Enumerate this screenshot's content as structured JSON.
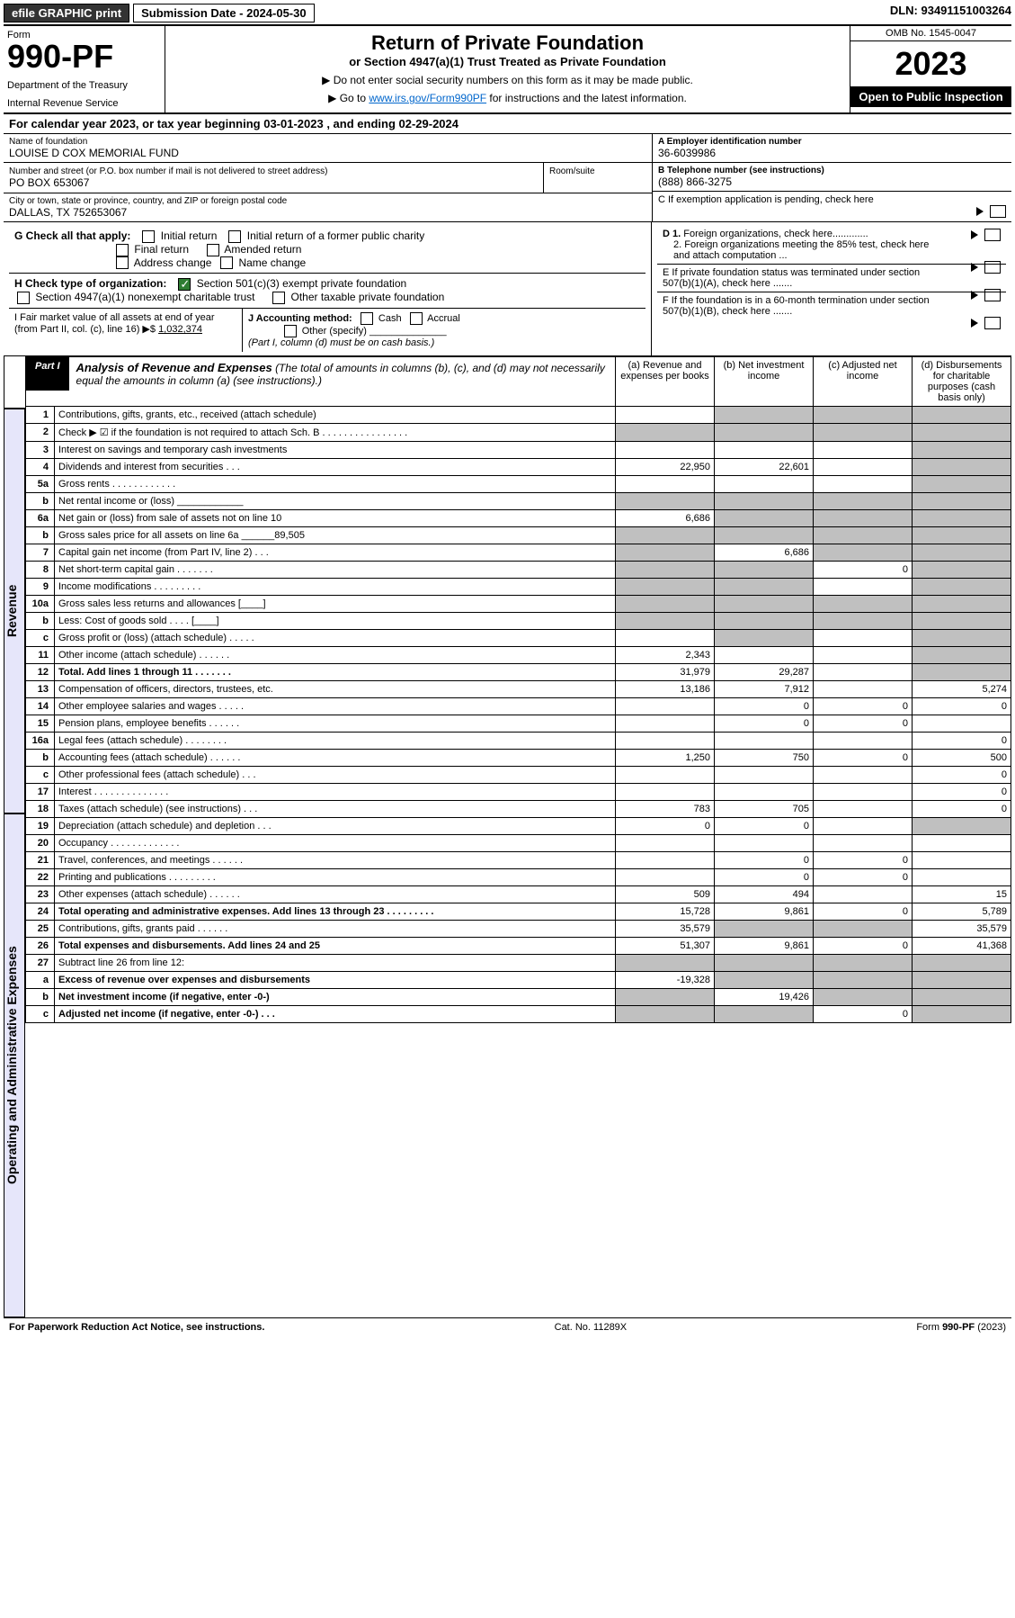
{
  "top": {
    "efile": "efile GRAPHIC print",
    "subdate_lbl": "Submission Date - 2024-05-30",
    "dln": "DLN: 93491151003264"
  },
  "head": {
    "form": "Form",
    "num": "990-PF",
    "dept": "Department of the Treasury",
    "irs": "Internal Revenue Service",
    "title": "Return of Private Foundation",
    "sub": "or Section 4947(a)(1) Trust Treated as Private Foundation",
    "note1": "▶ Do not enter social security numbers on this form as it may be made public.",
    "note2": "▶ Go to ",
    "link": "www.irs.gov/Form990PF",
    "note3": " for instructions and the latest information.",
    "omb": "OMB No. 1545-0047",
    "year": "2023",
    "open": "Open to Public Inspection"
  },
  "cal": "For calendar year 2023, or tax year beginning 03-01-2023                                , and ending 02-29-2024",
  "info": {
    "name_lbl": "Name of foundation",
    "name": "LOUISE D COX MEMORIAL FUND",
    "addr_lbl": "Number and street (or P.O. box number if mail is not delivered to street address)",
    "addr": "PO BOX 653067",
    "room_lbl": "Room/suite",
    "city_lbl": "City or town, state or province, country, and ZIP or foreign postal code",
    "city": "DALLAS, TX  752653067",
    "a_lbl": "A Employer identification number",
    "a": "36-6039986",
    "b_lbl": "B Telephone number (see instructions)",
    "b": "(888) 866-3275",
    "c": "C If exemption application is pending, check here",
    "d1": "D 1. Foreign organizations, check here.............",
    "d2": "2. Foreign organizations meeting the 85% test, check here and attach computation ...",
    "e": "E  If private foundation status was terminated under section 507(b)(1)(A), check here .......",
    "f": "F  If the foundation is in a 60-month termination under section 507(b)(1)(B), check here .......",
    "g": "G Check all that apply:",
    "g_opts": [
      "Initial return",
      "Initial return of a former public charity",
      "Final return",
      "Amended return",
      "Address change",
      "Name change"
    ],
    "h": "H Check type of organization:",
    "h1": "Section 501(c)(3) exempt private foundation",
    "h2": "Section 4947(a)(1) nonexempt charitable trust",
    "h3": "Other taxable private foundation",
    "i": "I Fair market value of all assets at end of year (from Part II, col. (c), line 16) ▶$ ",
    "i_val": "1,032,374",
    "j": "J Accounting method:",
    "j1": "Cash",
    "j2": "Accrual",
    "j3": "Other (specify)",
    "j_note": "(Part I, column (d) must be on cash basis.)"
  },
  "part1": {
    "tab": "Part I",
    "title": "Analysis of Revenue and Expenses",
    "title_note": "(The total of amounts in columns (b), (c), and (d) may not necessarily equal the amounts in column (a) (see instructions).)",
    "cols": {
      "a": "(a) Revenue and expenses per books",
      "b": "(b) Net investment income",
      "c": "(c) Adjusted net income",
      "d": "(d) Disbursements for charitable purposes (cash basis only)"
    }
  },
  "side": {
    "rev": "Revenue",
    "exp": "Operating and Administrative Expenses"
  },
  "rows": [
    {
      "n": "1",
      "d": "Contributions, gifts, grants, etc., received (attach schedule)",
      "a": "",
      "b": "g",
      "c": "g",
      "dd": "g"
    },
    {
      "n": "2",
      "d": "Check ▶ ☑ if the foundation is not required to attach Sch. B     .   .   .   .   .   .   .   .   .   .   .   .   .   .   .   .",
      "a": "g",
      "b": "g",
      "c": "g",
      "dd": "g"
    },
    {
      "n": "3",
      "d": "Interest on savings and temporary cash investments",
      "a": "",
      "b": "",
      "c": "",
      "dd": "g"
    },
    {
      "n": "4",
      "d": "Dividends and interest from securities     .   .   .",
      "a": "22,950",
      "b": "22,601",
      "c": "",
      "dd": "g"
    },
    {
      "n": "5a",
      "d": "Gross rents     .   .   .   .   .   .   .   .   .   .   .   .",
      "a": "",
      "b": "",
      "c": "",
      "dd": "g"
    },
    {
      "n": "b",
      "d": "Net rental income or (loss)  ____________",
      "a": "g",
      "b": "g",
      "c": "g",
      "dd": "g"
    },
    {
      "n": "6a",
      "d": "Net gain or (loss) from sale of assets not on line 10",
      "a": "6,686",
      "b": "g",
      "c": "g",
      "dd": "g"
    },
    {
      "n": "b",
      "d": "Gross sales price for all assets on line 6a ______89,505",
      "a": "g",
      "b": "g",
      "c": "g",
      "dd": "g"
    },
    {
      "n": "7",
      "d": "Capital gain net income (from Part IV, line 2)   .   .   .",
      "a": "g",
      "b": "6,686",
      "c": "g",
      "dd": "g"
    },
    {
      "n": "8",
      "d": "Net short-term capital gain   .   .   .   .   .   .   .",
      "a": "g",
      "b": "g",
      "c": "0",
      "dd": "g"
    },
    {
      "n": "9",
      "d": "Income modifications   .   .   .   .   .   .   .   .   .",
      "a": "g",
      "b": "g",
      "c": "",
      "dd": "g"
    },
    {
      "n": "10a",
      "d": "Gross sales less returns and allowances  [____]",
      "a": "g",
      "b": "g",
      "c": "g",
      "dd": "g"
    },
    {
      "n": "b",
      "d": "Less: Cost of goods sold     .   .   .   .   [____]",
      "a": "g",
      "b": "g",
      "c": "g",
      "dd": "g"
    },
    {
      "n": "c",
      "d": "Gross profit or (loss) (attach schedule)    .   .   .   .   .",
      "a": "",
      "b": "g",
      "c": "",
      "dd": "g"
    },
    {
      "n": "11",
      "d": "Other income (attach schedule)    .   .   .   .   .   .",
      "a": "2,343",
      "b": "",
      "c": "",
      "dd": "g"
    },
    {
      "n": "12",
      "d": "Total. Add lines 1 through 11   .   .   .   .   .   .   .",
      "a": "31,979",
      "b": "29,287",
      "c": "",
      "dd": "g",
      "bold": true
    },
    {
      "n": "13",
      "d": "Compensation of officers, directors, trustees, etc.",
      "a": "13,186",
      "b": "7,912",
      "c": "",
      "dd": "5,274"
    },
    {
      "n": "14",
      "d": "Other employee salaries and wages    .   .   .   .   .",
      "a": "",
      "b": "0",
      "c": "0",
      "dd": "0"
    },
    {
      "n": "15",
      "d": "Pension plans, employee benefits   .   .   .   .   .   .",
      "a": "",
      "b": "0",
      "c": "0",
      "dd": ""
    },
    {
      "n": "16a",
      "d": "Legal fees (attach schedule)  .   .   .   .   .   .   .   .",
      "a": "",
      "b": "",
      "c": "",
      "dd": "0"
    },
    {
      "n": "b",
      "d": "Accounting fees (attach schedule)  .   .   .   .   .   .",
      "a": "1,250",
      "b": "750",
      "c": "0",
      "dd": "500"
    },
    {
      "n": "c",
      "d": "Other professional fees (attach schedule)    .   .   .",
      "a": "",
      "b": "",
      "c": "",
      "dd": "0"
    },
    {
      "n": "17",
      "d": "Interest  .   .   .   .   .   .   .   .   .   .   .   .   .   .",
      "a": "",
      "b": "",
      "c": "",
      "dd": "0"
    },
    {
      "n": "18",
      "d": "Taxes (attach schedule) (see instructions)    .   .   .",
      "a": "783",
      "b": "705",
      "c": "",
      "dd": "0"
    },
    {
      "n": "19",
      "d": "Depreciation (attach schedule) and depletion    .   .   .",
      "a": "0",
      "b": "0",
      "c": "",
      "dd": "g"
    },
    {
      "n": "20",
      "d": "Occupancy  .   .   .   .   .   .   .   .   .   .   .   .   .",
      "a": "",
      "b": "",
      "c": "",
      "dd": ""
    },
    {
      "n": "21",
      "d": "Travel, conferences, and meetings  .   .   .   .   .   .",
      "a": "",
      "b": "0",
      "c": "0",
      "dd": ""
    },
    {
      "n": "22",
      "d": "Printing and publications  .   .   .   .   .   .   .   .   .",
      "a": "",
      "b": "0",
      "c": "0",
      "dd": ""
    },
    {
      "n": "23",
      "d": "Other expenses (attach schedule)  .   .   .   .   .   .",
      "a": "509",
      "b": "494",
      "c": "",
      "dd": "15"
    },
    {
      "n": "24",
      "d": "Total operating and administrative expenses. Add lines 13 through 23   .   .   .   .   .   .   .   .   .",
      "a": "15,728",
      "b": "9,861",
      "c": "0",
      "dd": "5,789",
      "bold": true
    },
    {
      "n": "25",
      "d": "Contributions, gifts, grants paid    .   .   .   .   .   .",
      "a": "35,579",
      "b": "g",
      "c": "g",
      "dd": "35,579"
    },
    {
      "n": "26",
      "d": "Total expenses and disbursements. Add lines 24 and 25",
      "a": "51,307",
      "b": "9,861",
      "c": "0",
      "dd": "41,368",
      "bold": true
    },
    {
      "n": "27",
      "d": "Subtract line 26 from line 12:",
      "a": "g",
      "b": "g",
      "c": "g",
      "dd": "g"
    },
    {
      "n": "a",
      "d": "Excess of revenue over expenses and disbursements",
      "a": "-19,328",
      "b": "g",
      "c": "g",
      "dd": "g",
      "bold": true
    },
    {
      "n": "b",
      "d": "Net investment income (if negative, enter -0-)",
      "a": "g",
      "b": "19,426",
      "c": "g",
      "dd": "g",
      "bold": true
    },
    {
      "n": "c",
      "d": "Adjusted net income (if negative, enter -0-)   .   .   .",
      "a": "g",
      "b": "g",
      "c": "0",
      "dd": "g",
      "bold": true
    }
  ],
  "footer": {
    "left": "For Paperwork Reduction Act Notice, see instructions.",
    "mid": "Cat. No. 11289X",
    "right": "Form 990-PF (2023)"
  }
}
